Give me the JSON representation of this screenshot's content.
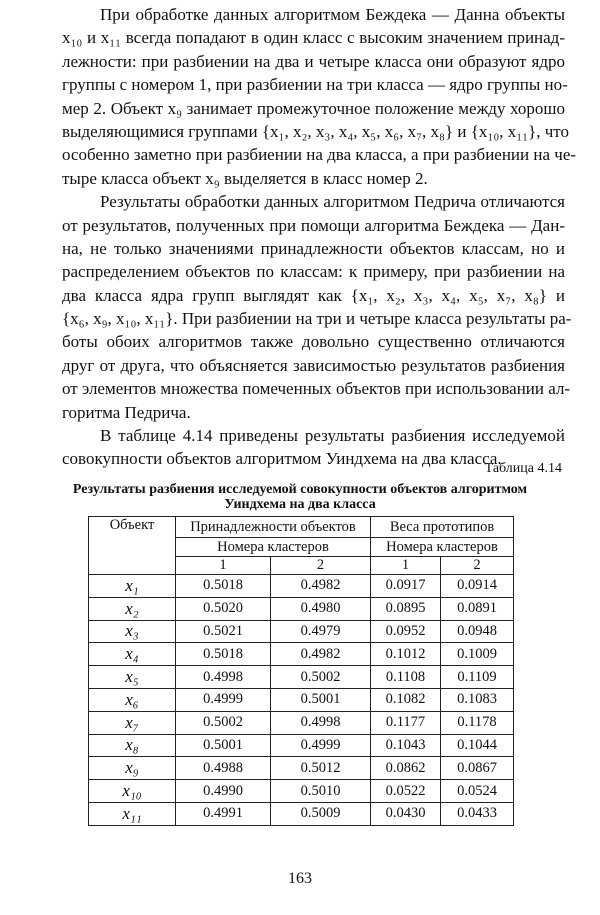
{
  "paragraphs": [
    {
      "lines": [
        "При обработке данных алгоритмом Беждека — Данна объекты",
        "x₁₀ и x₁₁ всегда попадают в один класс с высоким значением принад-",
        "лежности: при разбиении на два и четыре класса они образуют ядро",
        "группы с номером 1, при разбиении на три класса — ядро группы но-",
        "мер 2. Объект x₉ занимает промежуточное положение между хорошо",
        "выделяющимися группами {x₁, x₂, x₃, x₄, x₅, x₆, x₇, x₈} и {x₁₀, x₁₁}, что",
        "особенно заметно при разбиении на два класса, а при разбиении на че-",
        "тыре класса объект x₉ выделяется в класс номер 2."
      ]
    },
    {
      "lines": [
        "Результаты обработки данных алгоритмом Педрича отличаются",
        "от результатов, полученных при помощи алгоритма Беждека — Дан-",
        "на, не только значениями принадлежности объектов классам, но и",
        "распределением объектов по классам: к примеру, при разбиении на",
        "два класса ядра групп выглядят как {x₁, x₂, x₃, x₄, x₅, x₇, x₈} и",
        "{x₆, x₉, x₁₀, x₁₁}. При разбиении на три и четыре класса результаты ра-",
        "боты обоих алгоритмов также довольно существенно отличаются",
        "друг от друга, что объясняется зависимостью результатов разбиения",
        "от элементов множества помеченных объектов при использовании ал-",
        "горитма Педрича."
      ]
    },
    {
      "lines": [
        "В таблице 4.14 приведены результаты разбиения исследуемой",
        "совокупности объектов алгоритмом Уиндхема на два класса."
      ]
    }
  ],
  "table": {
    "number": "Таблица 4.14",
    "title_line1": "Результаты разбиения исследуемой совокупности объектов алгоритмом",
    "title_line2": "Уиндхема на два класса",
    "header": {
      "object": "Объект",
      "membership": "Принадлежности объектов",
      "weights": "Веса прототипов",
      "cluster_numbers": "Номера кластеров",
      "c1": "1",
      "c2": "2"
    },
    "rows": [
      [
        "x₁",
        "0.5018",
        "0.4982",
        "0.0917",
        "0.0914"
      ],
      [
        "x₂",
        "0.5020",
        "0.4980",
        "0.0895",
        "0.0891"
      ],
      [
        "x₃",
        "0.5021",
        "0.4979",
        "0.0952",
        "0.0948"
      ],
      [
        "x₄",
        "0.5018",
        "0.4982",
        "0.1012",
        "0.1009"
      ],
      [
        "x₅",
        "0.4998",
        "0.5002",
        "0.1108",
        "0.1109"
      ],
      [
        "x₆",
        "0.4999",
        "0.5001",
        "0.1082",
        "0.1083"
      ],
      [
        "x₇",
        "0.5002",
        "0.4998",
        "0.1177",
        "0.1178"
      ],
      [
        "x₈",
        "0.5001",
        "0.4999",
        "0.1043",
        "0.1044"
      ],
      [
        "x₉",
        "0.4988",
        "0.5012",
        "0.0862",
        "0.0867"
      ],
      [
        "x₁₀",
        "0.4990",
        "0.5010",
        "0.0522",
        "0.0524"
      ],
      [
        "x₁₁",
        "0.4991",
        "0.5009",
        "0.0430",
        "0.0433"
      ]
    ]
  },
  "page_number": "163"
}
